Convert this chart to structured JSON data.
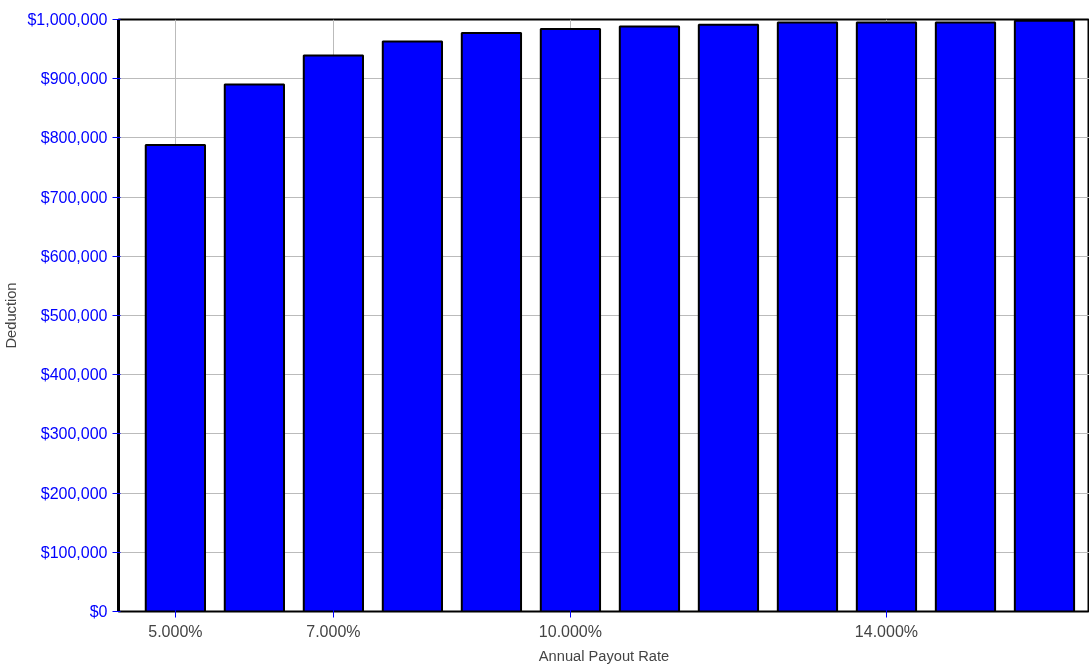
{
  "chart_data": {
    "type": "bar",
    "xlabel": "Annual Payout Rate",
    "ylabel": "Deduction",
    "x": [
      5,
      6,
      7,
      8,
      9,
      10,
      11,
      12,
      13,
      14,
      15,
      16
    ],
    "values": [
      788000,
      890000,
      939000,
      963000,
      977000,
      984000,
      988000,
      991000,
      995000,
      995000,
      995000,
      998000
    ],
    "color": "#0000ff",
    "xlim": [
      4.28,
      16.57
    ],
    "xticks": [
      {
        "value": 5,
        "label": "5.000%"
      },
      {
        "value": 7,
        "label": "7.000%"
      },
      {
        "value": 10,
        "label": "10.000%"
      },
      {
        "value": 14,
        "label": "14.000%"
      }
    ],
    "ylim": [
      0,
      1000000
    ],
    "yticks": [
      {
        "value": 0,
        "label": "$0"
      },
      {
        "value": 100000,
        "label": "$100,000"
      },
      {
        "value": 200000,
        "label": "$200,000"
      },
      {
        "value": 300000,
        "label": "$300,000"
      },
      {
        "value": 400000,
        "label": "$400,000"
      },
      {
        "value": 500000,
        "label": "$500,000"
      },
      {
        "value": 600000,
        "label": "$600,000"
      },
      {
        "value": 700000,
        "label": "$700,000"
      },
      {
        "value": 800000,
        "label": "$800,000"
      },
      {
        "value": 900000,
        "label": "$900,000"
      },
      {
        "value": 1000000,
        "label": "$1,000,000"
      }
    ],
    "grid": true
  }
}
